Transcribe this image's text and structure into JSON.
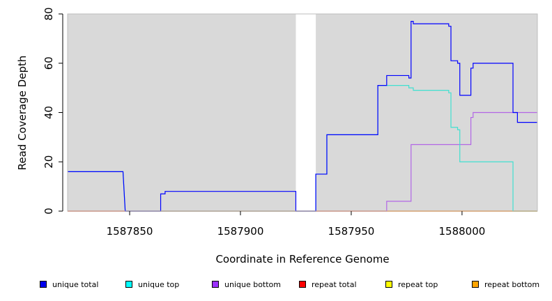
{
  "chart_data": {
    "type": "line",
    "title": "",
    "xlabel": "Coordinate in Reference Genome",
    "ylabel": "Read Coverage Depth",
    "xlim": [
      1587822,
      1588034
    ],
    "ylim": [
      0,
      80
    ],
    "xticks": [
      1587850,
      1587900,
      1587950,
      1588000
    ],
    "xtick_labels": [
      "1587850",
      "1587900",
      "1587950",
      "1588000"
    ],
    "yticks": [
      0,
      20,
      40,
      60,
      80
    ],
    "ytick_labels": [
      "0",
      "20",
      "40",
      "60",
      "80"
    ],
    "panel_background": "#d9d9d9",
    "gap_region": [
      1587925,
      1587934
    ],
    "series": [
      {
        "name": "unique total",
        "color": "#0000ff",
        "legend_color": "#0000ee",
        "steps": [
          [
            1587822,
            16
          ],
          [
            1587847,
            16
          ],
          [
            1587848,
            0
          ],
          [
            1587864,
            0
          ],
          [
            1587864,
            7
          ],
          [
            1587866,
            7
          ],
          [
            1587866,
            8
          ],
          [
            1587925,
            8
          ],
          [
            1587925,
            0
          ],
          [
            1587934,
            0
          ],
          [
            1587934,
            15
          ],
          [
            1587939,
            15
          ],
          [
            1587939,
            31
          ],
          [
            1587962,
            31
          ],
          [
            1587962,
            51
          ],
          [
            1587966,
            51
          ],
          [
            1587966,
            55
          ],
          [
            1587976,
            55
          ],
          [
            1587976,
            54
          ],
          [
            1587977,
            54
          ],
          [
            1587977,
            77
          ],
          [
            1587978,
            77
          ],
          [
            1587978,
            76
          ],
          [
            1587994,
            76
          ],
          [
            1587994,
            75
          ],
          [
            1587995,
            75
          ],
          [
            1587995,
            61
          ],
          [
            1587998,
            61
          ],
          [
            1587998,
            60
          ],
          [
            1587999,
            60
          ],
          [
            1587999,
            47
          ],
          [
            1588004,
            47
          ],
          [
            1588004,
            58
          ],
          [
            1588005,
            58
          ],
          [
            1588005,
            60
          ],
          [
            1588023,
            60
          ],
          [
            1588023,
            40
          ],
          [
            1588025,
            40
          ],
          [
            1588025,
            36
          ],
          [
            1588034,
            36
          ]
        ]
      },
      {
        "name": "unique top",
        "color": "#40e0d0",
        "legend_color": "#00ffff",
        "steps": [
          [
            1587822,
            16
          ],
          [
            1587847,
            16
          ],
          [
            1587848,
            0
          ],
          [
            1587925,
            0
          ],
          [
            1587934,
            0
          ],
          [
            1587934,
            15
          ],
          [
            1587939,
            15
          ],
          [
            1587939,
            31
          ],
          [
            1587962,
            31
          ],
          [
            1587962,
            51
          ],
          [
            1587976,
            51
          ],
          [
            1587976,
            50
          ],
          [
            1587978,
            50
          ],
          [
            1587978,
            49
          ],
          [
            1587994,
            49
          ],
          [
            1587994,
            48
          ],
          [
            1587995,
            48
          ],
          [
            1587995,
            34
          ],
          [
            1587998,
            34
          ],
          [
            1587998,
            33
          ],
          [
            1587999,
            33
          ],
          [
            1587999,
            20
          ],
          [
            1588023,
            20
          ],
          [
            1588023,
            0
          ],
          [
            1588034,
            0
          ]
        ]
      },
      {
        "name": "unique bottom",
        "color": "#b266e6",
        "legend_color": "#9b30ff",
        "steps": [
          [
            1587822,
            0
          ],
          [
            1587966,
            0
          ],
          [
            1587966,
            4
          ],
          [
            1587977,
            4
          ],
          [
            1587977,
            27
          ],
          [
            1588004,
            27
          ],
          [
            1588004,
            38
          ],
          [
            1588005,
            38
          ],
          [
            1588005,
            40
          ],
          [
            1588023,
            40
          ],
          [
            1588034,
            40
          ]
        ]
      },
      {
        "name": "repeat total",
        "color": "#ff0000",
        "legend_color": "#ff0000",
        "steps": [
          [
            1587822,
            0
          ],
          [
            1587925,
            0
          ],
          [
            1587934,
            0
          ],
          [
            1588034,
            0
          ]
        ]
      },
      {
        "name": "repeat top",
        "color": "#ffff00",
        "legend_color": "#ffff00",
        "steps": [
          [
            1587822,
            0
          ],
          [
            1587925,
            0
          ],
          [
            1587934,
            0
          ],
          [
            1588034,
            0
          ]
        ]
      },
      {
        "name": "repeat bottom",
        "color": "#ffa500",
        "legend_color": "#ffa500",
        "steps": [
          [
            1587822,
            0
          ],
          [
            1587925,
            0
          ],
          [
            1587934,
            0
          ],
          [
            1588034,
            0
          ]
        ]
      }
    ]
  }
}
